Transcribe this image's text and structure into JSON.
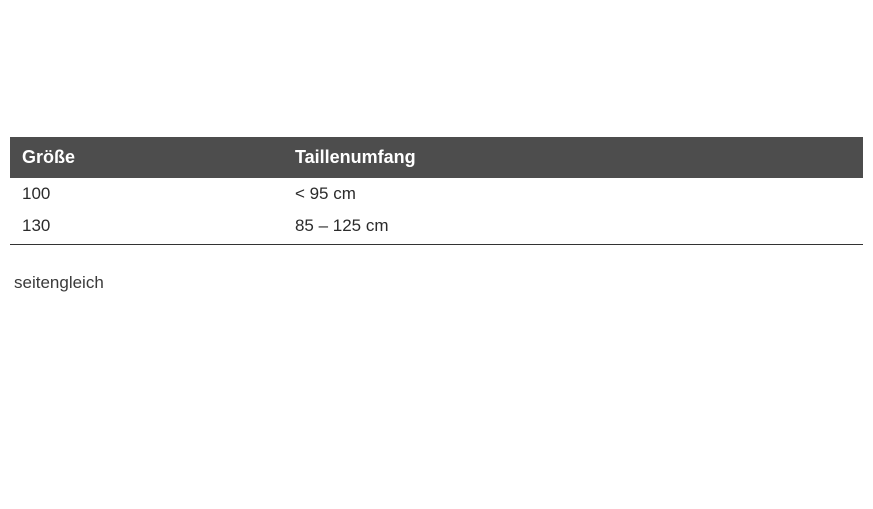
{
  "table": {
    "type": "table",
    "header_bg": "#4d4d4d",
    "header_text_color": "#ffffff",
    "body_text_color": "#2b2b2b",
    "border_bottom_color": "#333333",
    "header_fontsize": 18,
    "body_fontsize": 17,
    "columns": [
      {
        "label": "Größe",
        "width_pct": 32
      },
      {
        "label": "Taillenumfang",
        "width_pct": 68
      }
    ],
    "rows": [
      [
        "100",
        "< 95 cm"
      ],
      [
        "130",
        "85 – 125 cm"
      ]
    ]
  },
  "note": "seitengleich"
}
